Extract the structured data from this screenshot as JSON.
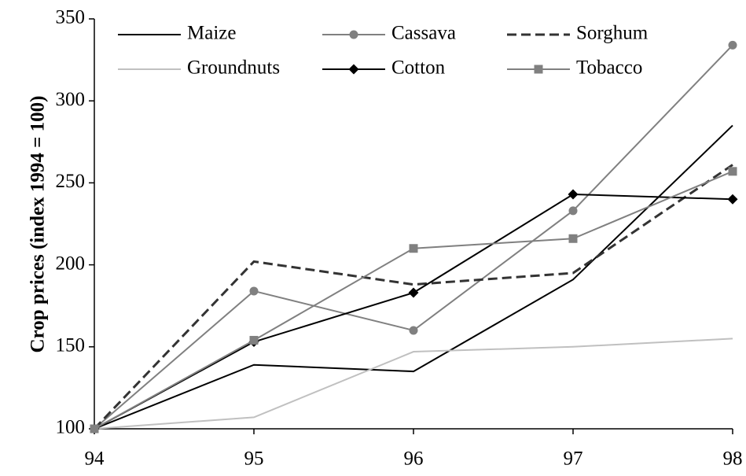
{
  "chart_data": {
    "type": "line",
    "y_label": "Crop prices (index 1994 = 100)",
    "categories": [
      "94",
      "95",
      "96",
      "97",
      "98"
    ],
    "ylim": [
      100,
      350
    ],
    "yticks": [
      100,
      150,
      200,
      250,
      300,
      350
    ],
    "grid": false,
    "series": [
      {
        "name": "Maize",
        "color": "#000000",
        "marker": "none",
        "dash": "solid",
        "values": [
          100,
          139,
          135,
          191,
          285
        ]
      },
      {
        "name": "Cassava",
        "color": "#808080",
        "marker": "circle",
        "dash": "solid",
        "values": [
          100,
          184,
          160,
          233,
          334
        ]
      },
      {
        "name": "Sorghum",
        "color": "#333333",
        "marker": "none",
        "dash": "dashed",
        "values": [
          100,
          202,
          188,
          195,
          261
        ]
      },
      {
        "name": "Groundnuts",
        "color": "#c0c0c0",
        "marker": "none",
        "dash": "solid",
        "values": [
          100,
          107,
          147,
          150,
          155
        ]
      },
      {
        "name": "Cotton",
        "color": "#000000",
        "marker": "diamond",
        "dash": "solid",
        "values": [
          100,
          153,
          183,
          243,
          240
        ]
      },
      {
        "name": "Tobacco",
        "color": "#808080",
        "marker": "square",
        "dash": "solid",
        "values": [
          100,
          154,
          210,
          216,
          257
        ]
      }
    ]
  }
}
